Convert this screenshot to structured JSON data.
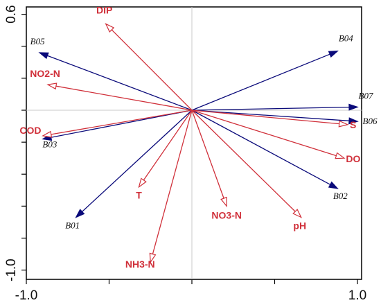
{
  "chart_data": {
    "type": "biplot",
    "title": "",
    "xlabel": "",
    "ylabel": "",
    "xlim": [
      -1.02,
      1.02
    ],
    "ylim": [
      -1.05,
      0.62
    ],
    "x_ticks": [
      -1.0,
      -0.5,
      0.0,
      0.5,
      1.0
    ],
    "x_tick_labels": [
      "-1.0",
      "",
      "",
      "",
      "1.0"
    ],
    "y_ticks": [
      -1.0,
      -0.8,
      -0.6,
      -0.4,
      -0.2,
      0.0,
      0.2,
      0.4,
      0.6
    ],
    "y_tick_labels": [
      "-1.0",
      "",
      "",
      "",
      "",
      "",
      "",
      "",
      "0.6"
    ],
    "reference_lines": {
      "x": 0.0,
      "y": 0.0
    },
    "colors": {
      "species": "#0a0a7a",
      "environment": "#d0303a",
      "reference": "#c8c8c8"
    },
    "series": [
      {
        "name": "",
        "kind": "sample arrows (filled heads)",
        "points": [
          {
            "label": "B05",
            "x": -0.92,
            "y": 0.36
          },
          {
            "label": "B04",
            "x": 0.88,
            "y": 0.37
          },
          {
            "label": "B07",
            "x": 1.0,
            "y": 0.02
          },
          {
            "label": "B06",
            "x": 1.0,
            "y": -0.07
          },
          {
            "label": "B03",
            "x": -0.9,
            "y": -0.18
          },
          {
            "label": "B02",
            "x": 0.88,
            "y": -0.49
          },
          {
            "label": "B01",
            "x": -0.7,
            "y": -0.67
          }
        ]
      },
      {
        "name": "",
        "kind": "environmental variable arrows (open heads)",
        "points": [
          {
            "label": "DIP",
            "x": -0.52,
            "y": 0.54
          },
          {
            "label": "NO2-N",
            "x": -0.87,
            "y": 0.16
          },
          {
            "label": "COD",
            "x": -0.9,
            "y": -0.16
          },
          {
            "label": "S",
            "x": 0.94,
            "y": -0.09
          },
          {
            "label": "DO",
            "x": 0.92,
            "y": -0.3
          },
          {
            "label": "T",
            "x": -0.32,
            "y": -0.48
          },
          {
            "label": "NO3-N",
            "x": 0.21,
            "y": -0.6
          },
          {
            "label": "pH",
            "x": 0.66,
            "y": -0.67
          },
          {
            "label": "NH3-N",
            "x": -0.25,
            "y": -0.95
          }
        ]
      }
    ]
  }
}
